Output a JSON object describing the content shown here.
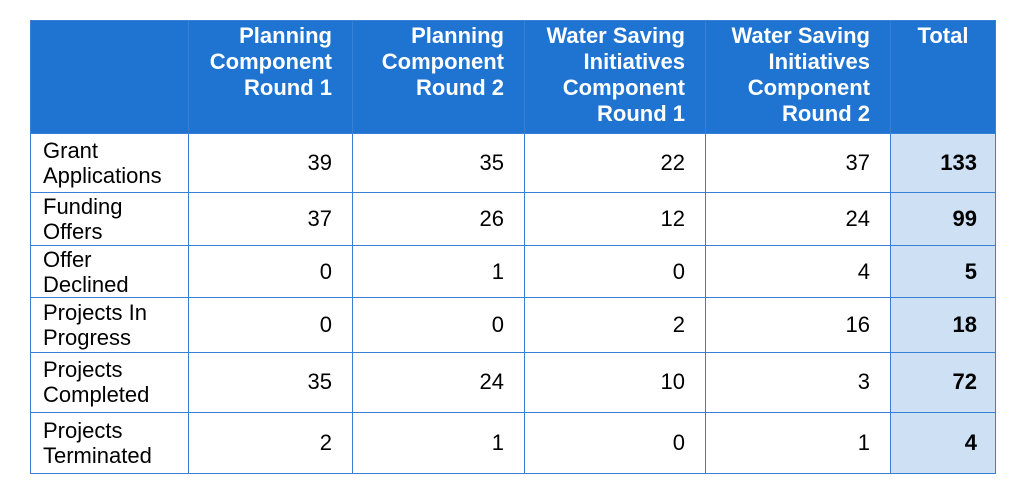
{
  "table": {
    "corner": "",
    "columns": [
      "Planning Component Round 1",
      "Planning Component Round 2",
      "Water Saving Initiatives Component Round 1",
      "Water Saving Initiatives Component Round 2",
      "Total"
    ],
    "column_lines": [
      [
        "Planning",
        "Component",
        "Round 1"
      ],
      [
        "Planning",
        "Component",
        "Round 2"
      ],
      [
        "Water Saving",
        "Initiatives",
        "Component",
        "Round 1"
      ],
      [
        "Water Saving",
        "Initiatives",
        "Component",
        "Round 2"
      ],
      [
        "Total"
      ]
    ],
    "rows": [
      {
        "label_lines": [
          "Grant",
          "Applications"
        ],
        "values": [
          "39",
          "35",
          "22",
          "37"
        ],
        "total": "133"
      },
      {
        "label_lines": [
          "Funding",
          "Offers"
        ],
        "values": [
          "37",
          "26",
          "12",
          "24"
        ],
        "total": "99"
      },
      {
        "label_lines": [
          "Offer",
          "Declined"
        ],
        "values": [
          "0",
          "1",
          "0",
          "4"
        ],
        "total": "5"
      },
      {
        "label_lines": [
          "Projects In",
          "Progress"
        ],
        "values": [
          "0",
          "0",
          "2",
          "16"
        ],
        "total": "18"
      },
      {
        "label_lines": [
          "Projects",
          "Completed"
        ],
        "values": [
          "35",
          "24",
          "10",
          "3"
        ],
        "total": "72"
      },
      {
        "label_lines": [
          "Projects",
          "Terminated"
        ],
        "values": [
          "2",
          "1",
          "0",
          "1"
        ],
        "total": "4"
      }
    ]
  },
  "colors": {
    "header_bg": "#1f73d1",
    "header_text": "#ffffff",
    "border": "#3a7fd6",
    "total_bg": "#cde0f4"
  }
}
